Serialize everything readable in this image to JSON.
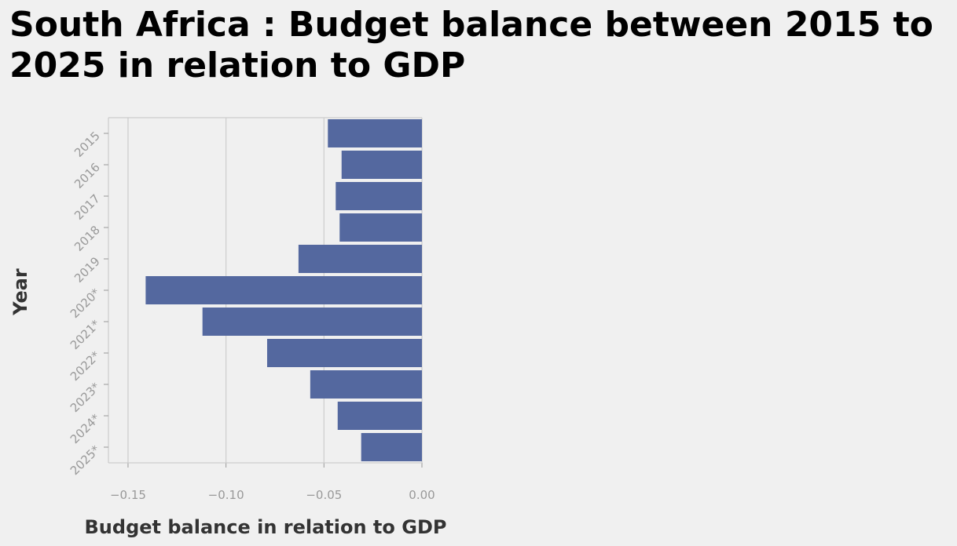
{
  "chart_data": {
    "type": "bar",
    "orientation": "horizontal",
    "title": "South Africa : Budget balance between 2015 to 2025 in relation to GDP",
    "xlabel": "Budget balance in relation to GDP",
    "ylabel": "Year",
    "categories": [
      "2015",
      "2016",
      "2017",
      "2018",
      "2019",
      "2020*",
      "2021*",
      "2022*",
      "2023*",
      "2024*",
      "2025*"
    ],
    "values": [
      -0.048,
      -0.041,
      -0.044,
      -0.042,
      -0.063,
      -0.141,
      -0.112,
      -0.079,
      -0.057,
      -0.043,
      -0.031
    ],
    "xlim": [
      -0.16,
      0.0
    ],
    "xticks": [
      -0.15,
      -0.1,
      -0.05,
      0.0
    ],
    "xtick_labels": [
      "−0.15",
      "−0.10",
      "−0.05",
      "0.00"
    ],
    "grid": true,
    "colors": {
      "bar": "#54689f",
      "grid": "#cccccc",
      "background": "#f0f0f0"
    }
  }
}
